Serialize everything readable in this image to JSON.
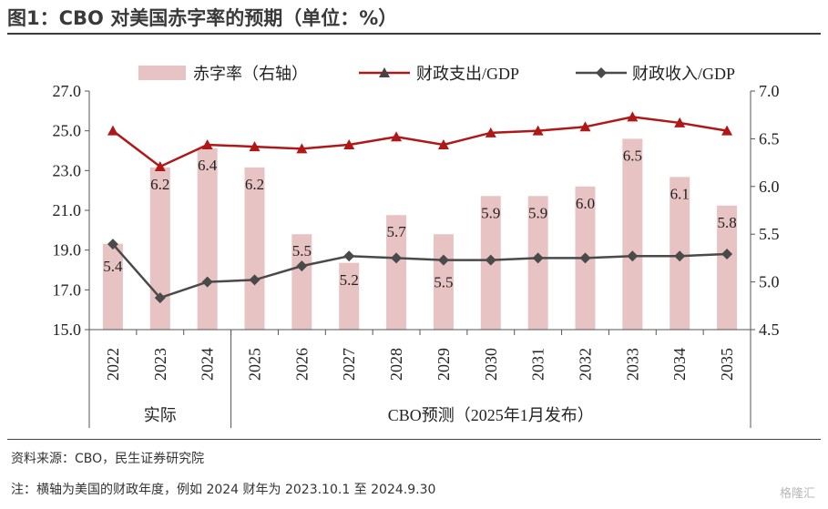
{
  "title": "图1：CBO 对美国赤字率的预期（单位：%）",
  "chart_data": {
    "type": "bar+line",
    "categories": [
      "2022",
      "2023",
      "2024",
      "2025",
      "2026",
      "2027",
      "2028",
      "2029",
      "2030",
      "2031",
      "2032",
      "2033",
      "2034",
      "2035"
    ],
    "series": [
      {
        "name": "赤字率（右轴）",
        "kind": "bar",
        "axis": "right",
        "color": "#e8c3c3",
        "values": [
          5.4,
          6.2,
          6.4,
          6.2,
          5.5,
          5.2,
          5.7,
          5.5,
          5.9,
          5.9,
          6.0,
          6.5,
          6.1,
          5.8
        ],
        "labels": [
          "5.4",
          "6.2",
          "6.4",
          "6.2",
          "5.5",
          "5.2",
          "5.7",
          "5.5",
          "5.9",
          "5.9",
          "6.0",
          "6.5",
          "6.1",
          "5.8"
        ]
      },
      {
        "name": "财政支出/GDP",
        "kind": "line",
        "axis": "left",
        "color": "#b01818",
        "marker": "triangle",
        "values": [
          25.0,
          23.2,
          24.3,
          24.2,
          24.1,
          24.3,
          24.7,
          24.3,
          24.9,
          25.0,
          25.2,
          25.7,
          25.4,
          25.0
        ]
      },
      {
        "name": "财政收入/GDP",
        "kind": "line",
        "axis": "left",
        "color": "#4a4a4a",
        "marker": "diamond",
        "values": [
          19.3,
          16.6,
          17.4,
          17.5,
          18.2,
          18.7,
          18.6,
          18.5,
          18.5,
          18.6,
          18.6,
          18.7,
          18.7,
          18.8
        ]
      }
    ],
    "left_axis": {
      "ylim": [
        15.0,
        27.0
      ],
      "ticks": [
        "15.0",
        "17.0",
        "19.0",
        "21.0",
        "23.0",
        "25.0",
        "27.0"
      ]
    },
    "right_axis": {
      "ylim": [
        4.5,
        7.0
      ],
      "ticks": [
        "4.5",
        "5.0",
        "5.5",
        "6.0",
        "6.5",
        "7.0"
      ]
    },
    "groups": [
      {
        "label": "实际",
        "span": [
          0,
          2
        ]
      },
      {
        "label": "CBO预测（2025年1月发布）",
        "span": [
          3,
          13
        ]
      }
    ],
    "legend_position": "top"
  },
  "source": "资料来源：CBO，民生证券研究院",
  "note": "注：横轴为美国的财政年度，例如 2024 财年为 2023.10.1 至 2024.9.30",
  "watermark": "格隆汇"
}
